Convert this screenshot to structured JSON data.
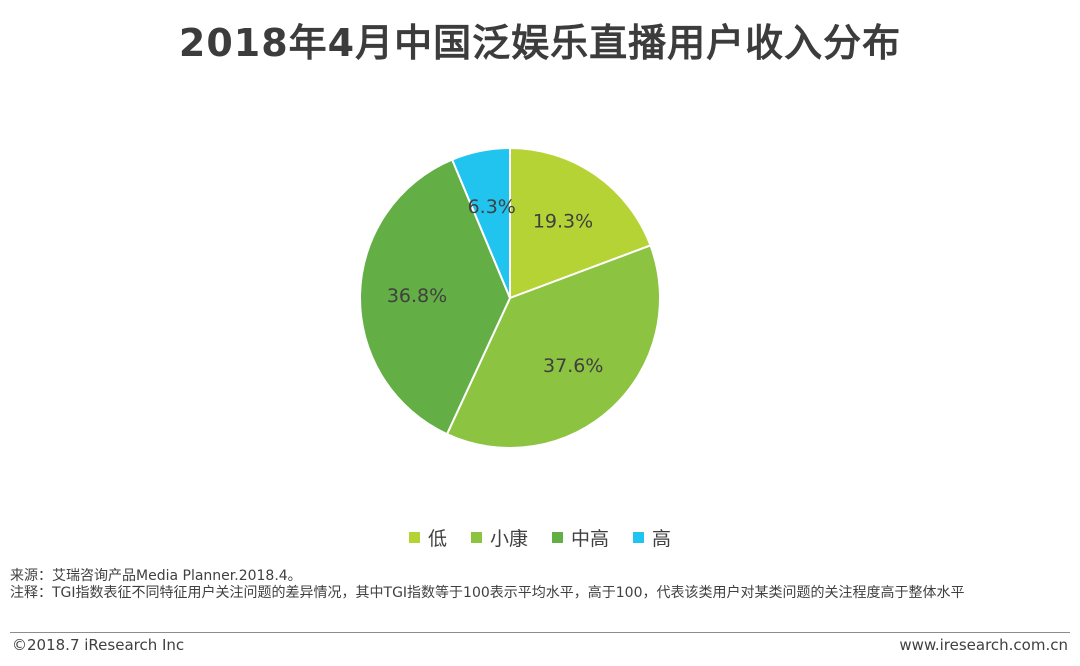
{
  "title": "2018年4月中国泛娱乐直播用户收入分布",
  "chart_data": {
    "type": "pie",
    "title": "2018年4月中国泛娱乐直播用户收入分布",
    "legend_position": "bottom",
    "slices": [
      {
        "name": "低",
        "value": 19.3,
        "label": "19.3%",
        "color": "#b5d334"
      },
      {
        "name": "小康",
        "value": 37.6,
        "label": "37.6%",
        "color": "#8cc341"
      },
      {
        "name": "中高",
        "value": 36.8,
        "label": "36.8%",
        "color": "#63ae45"
      },
      {
        "name": "高",
        "value": 6.3,
        "label": "6.3%",
        "color": "#21c4ef"
      }
    ]
  },
  "notes": {
    "source": "来源：艾瑞咨询产品Media Planner.2018.4。",
    "comment": "注释：TGI指数表征不同特征用户关注问题的差异情况，其中TGI指数等于100表示平均水平，高于100，代表该类用户对某类问题的关注程度高于整体水平"
  },
  "footer": {
    "copyright": "©2018.7 iResearch Inc",
    "website": "www.iresearch.com.cn"
  }
}
